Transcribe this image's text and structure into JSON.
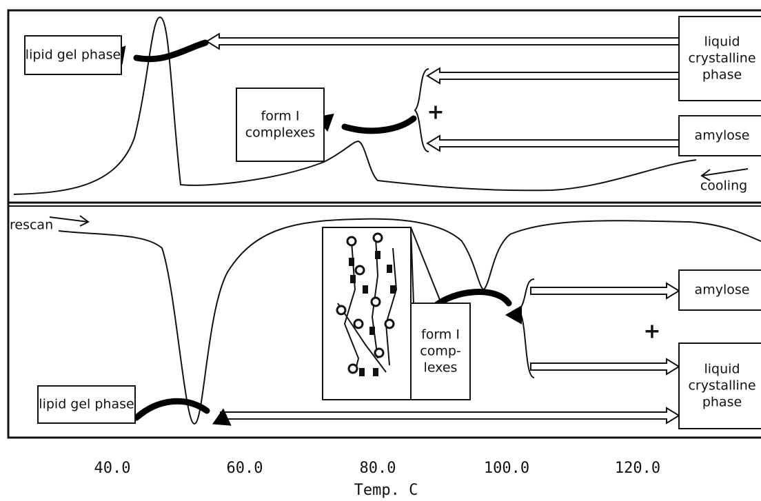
{
  "top_panel": {
    "gel_label": [
      "lipid gel phase"
    ],
    "crystalline_label": [
      "liquid",
      "crystalline",
      "phase"
    ],
    "complex_label": [
      "form I",
      "complexes"
    ],
    "plus": "+",
    "amylose_label": [
      "amylose"
    ],
    "direction": "cooling"
  },
  "bottom_panel": {
    "direction": "rescan",
    "amylose_label": [
      "amylose"
    ],
    "plus": "+",
    "crystalline_label": [
      "liquid",
      "crystalline",
      "phase"
    ],
    "complex_label": [
      "form I",
      "comp-",
      "lexes"
    ],
    "gel_label": [
      "lipid gel phase"
    ]
  },
  "x_axis": {
    "ticks": [
      "40.0",
      "60.0",
      "80.0",
      "100.0",
      "120.0"
    ],
    "label": "Temp. C"
  }
}
